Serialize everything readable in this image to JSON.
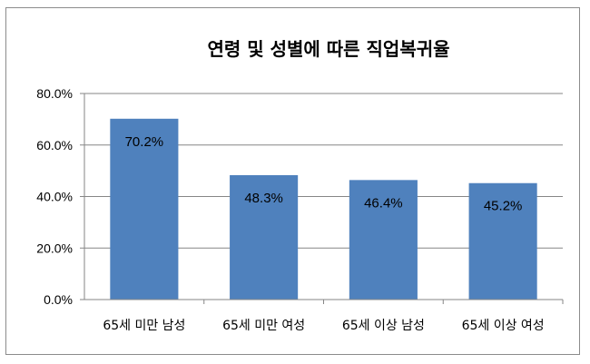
{
  "chart_data": {
    "type": "bar",
    "title": "연령 및 성별에 따른 직업복귀율",
    "categories": [
      "65세 미만 남성",
      "65세 미만 여성",
      "65세 이상 남성",
      "65세 이상 여성"
    ],
    "values": [
      70.2,
      48.3,
      46.4,
      45.2
    ],
    "data_labels": [
      "70.2%",
      "48.3%",
      "46.4%",
      "45.2%"
    ],
    "yticks": [
      "0.0%",
      "20.0%",
      "40.0%",
      "60.0%",
      "80.0%"
    ],
    "ylim": [
      0,
      80
    ],
    "grid": true,
    "legend": "none",
    "bar_color": "#4f81bd",
    "xlabel": "",
    "ylabel": ""
  }
}
